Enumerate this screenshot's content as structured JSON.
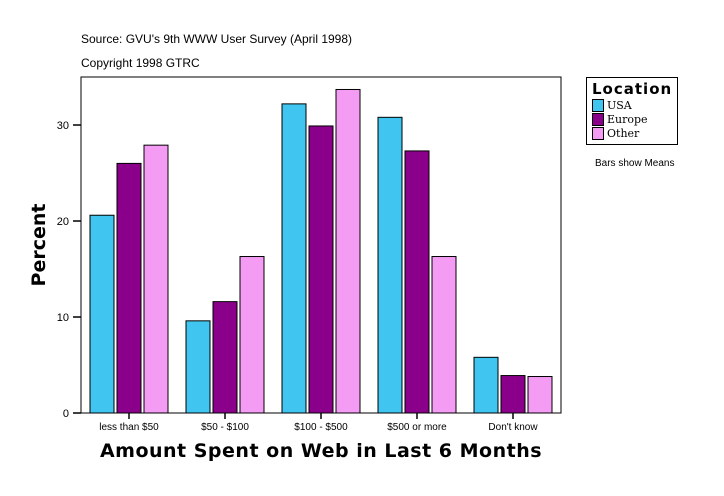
{
  "header": {
    "source": "Source: GVU's 9th WWW User Survey (April 1998)",
    "copyright": "Copyright 1998 GTRC"
  },
  "note": "Bars show Means",
  "chart_data": {
    "type": "bar",
    "xlabel": "Amount Spent on Web in Last 6 Months",
    "ylabel": "Percent",
    "ylim": [
      0,
      35
    ],
    "yticks": [
      0,
      10,
      20,
      30
    ],
    "grid": false,
    "legend_title": "Location",
    "legend_position": "right",
    "categories": [
      "less than $50",
      "$50 - $100",
      "$100 - $500",
      "$500 or more",
      "Don't know"
    ],
    "series": [
      {
        "name": "USA",
        "color": "#40c4f0",
        "values": [
          20.6,
          9.6,
          32.2,
          30.8,
          5.8
        ]
      },
      {
        "name": "Europe",
        "color": "#8b008b",
        "values": [
          26.0,
          11.6,
          29.9,
          27.3,
          3.9
        ]
      },
      {
        "name": "Other",
        "color": "#f49cf4",
        "values": [
          27.9,
          16.3,
          33.7,
          16.3,
          3.8
        ]
      }
    ]
  }
}
